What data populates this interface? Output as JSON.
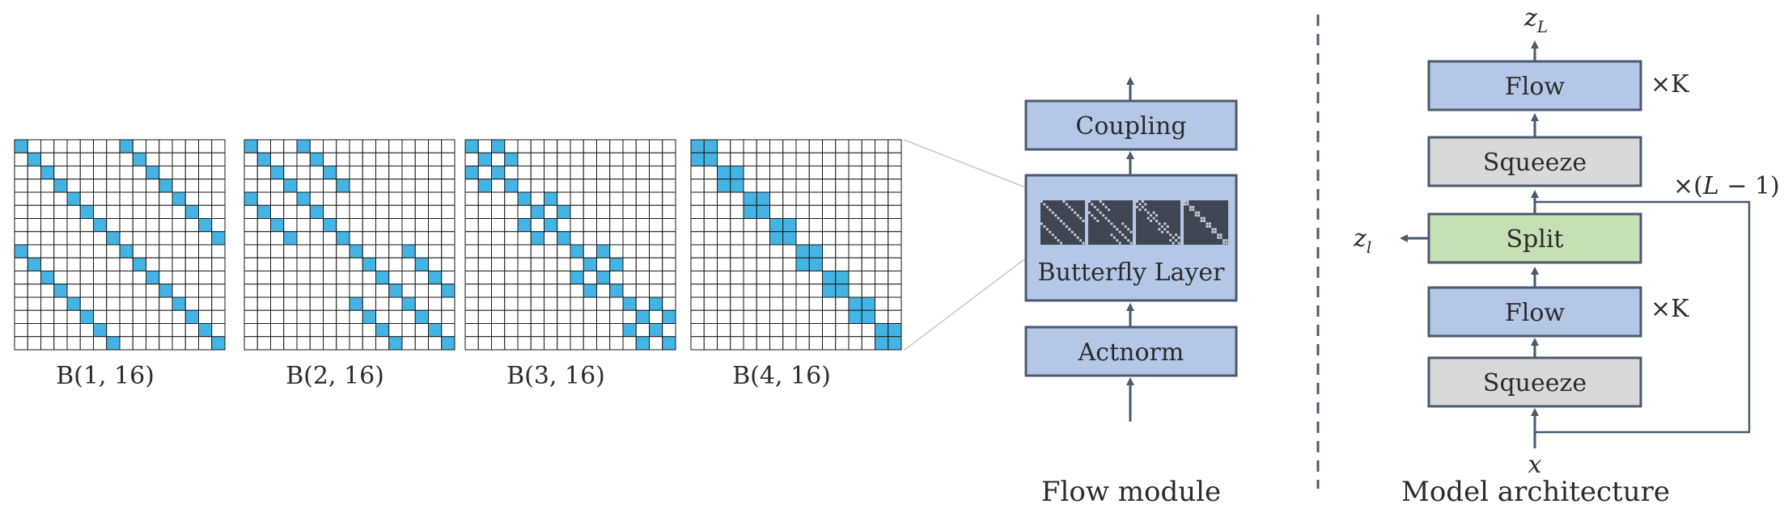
{
  "matrices": [
    {
      "label": "B(1, 16)",
      "level": 1
    },
    {
      "label": "B(2, 16)",
      "level": 2
    },
    {
      "label": "B(3, 16)",
      "level": 3
    },
    {
      "label": "B(4, 16)",
      "level": 4
    }
  ],
  "matrix_size": 16,
  "colors": {
    "cell_fill": "#44b4e4",
    "flow_box": "#b4c7e7",
    "squeeze_box": "#d9d9d9",
    "split_box": "#c5e0b4",
    "box_stroke": "#4a5a70",
    "arrow": "#4a5a70",
    "dark_tile": "#3f4652"
  },
  "flow_module": {
    "coupling_label": "Coupling",
    "butterfly_label": "Butterfly Layer",
    "actnorm_label": "Actnorm",
    "caption": "Flow module"
  },
  "model_architecture": {
    "top_output": "z",
    "top_output_sub": "L",
    "flow_top_label": "Flow",
    "repeat_top": "×K",
    "squeeze_top_label": "Squeeze",
    "repeat_loop": "×(L − 1)",
    "side_output": "z",
    "side_output_sub": "l",
    "split_label": "Split",
    "flow_bottom_label": "Flow",
    "repeat_bottom": "×K",
    "squeeze_bottom_label": "Squeeze",
    "input": "x",
    "caption": "Model architecture"
  }
}
